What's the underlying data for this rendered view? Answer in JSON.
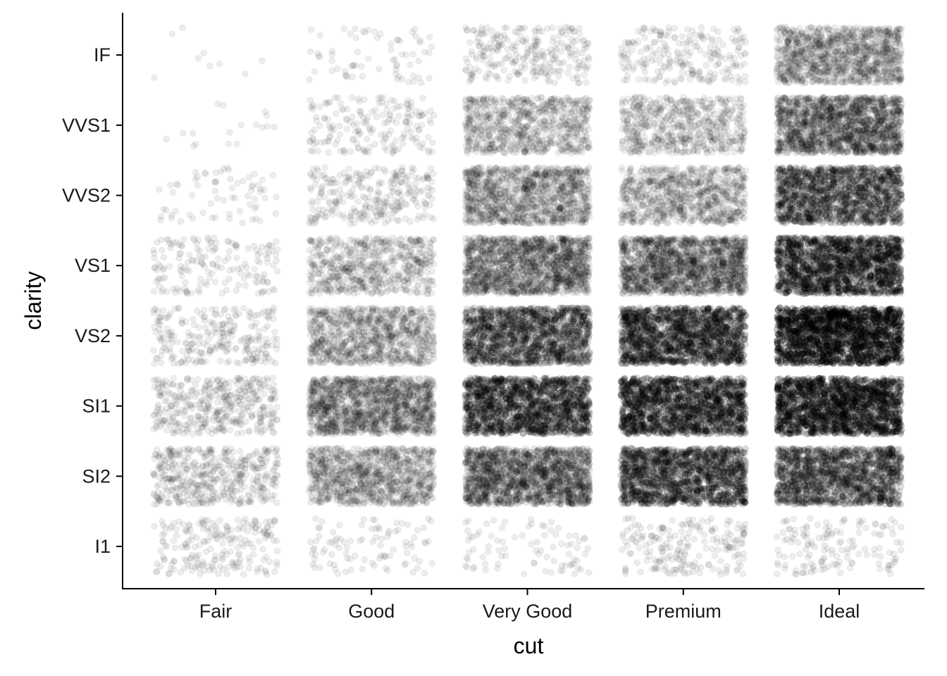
{
  "chart_data": {
    "type": "scatter",
    "subtype": "jitter",
    "title": "",
    "xlabel": "cut",
    "ylabel": "clarity",
    "x_categories": [
      "Fair",
      "Good",
      "Very Good",
      "Premium",
      "Ideal"
    ],
    "y_categories": [
      "I1",
      "SI2",
      "SI1",
      "VS2",
      "VS1",
      "VVS2",
      "VVS1",
      "IF"
    ],
    "jitter": {
      "width": 0.4,
      "height": 0.4
    },
    "point_color": "#000000",
    "point_alpha": 0.07,
    "grid": false,
    "legend": "none",
    "counts": [
      {
        "cut": "Fair",
        "values": [
          210,
          466,
          408,
          261,
          170,
          69,
          17,
          9
        ]
      },
      {
        "cut": "Good",
        "values": [
          96,
          1081,
          1560,
          978,
          648,
          286,
          186,
          71
        ]
      },
      {
        "cut": "Very Good",
        "values": [
          84,
          2100,
          3240,
          2591,
          1775,
          1235,
          789,
          268
        ]
      },
      {
        "cut": "Premium",
        "values": [
          205,
          2949,
          3575,
          3357,
          1989,
          870,
          616,
          230
        ]
      },
      {
        "cut": "Ideal",
        "values": [
          146,
          2598,
          4282,
          5071,
          3589,
          2606,
          2047,
          1212
        ]
      }
    ]
  }
}
